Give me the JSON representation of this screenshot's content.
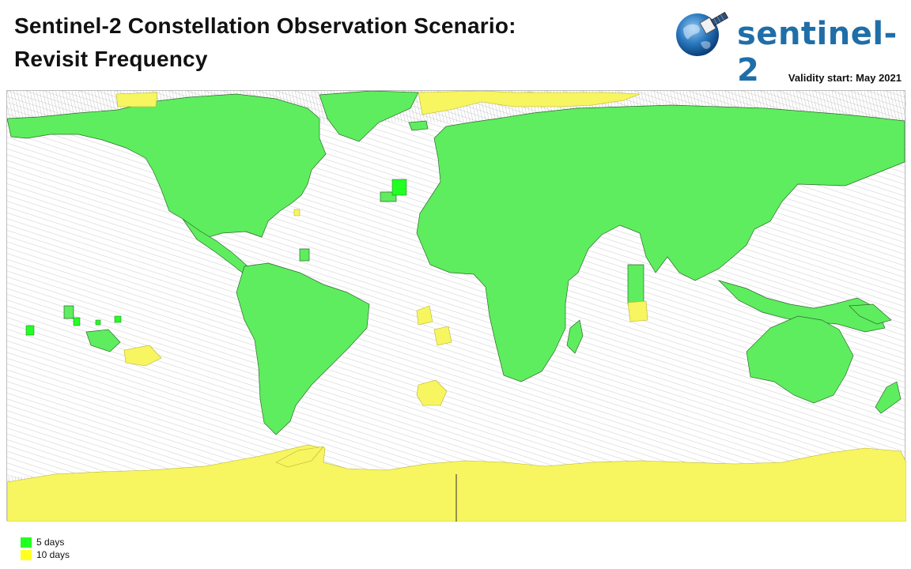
{
  "title": {
    "line1": "Sentinel-2 Constellation Observation Scenario:",
    "line2": "Revisit Frequency"
  },
  "logo": {
    "text": "sentinel-2",
    "icon": "satellite-globe-icon"
  },
  "validity": "Validity start: May 2021",
  "legend": [
    {
      "label": "5 days",
      "color": "#22ff22"
    },
    {
      "label": "10 days",
      "color": "#ffff22"
    }
  ],
  "colors": {
    "land_5_days": "#5eed5e",
    "polar_10_days": "#f7f560",
    "swath_lines": "#c8c8c8",
    "logo_blue": "#1f6ea8"
  }
}
